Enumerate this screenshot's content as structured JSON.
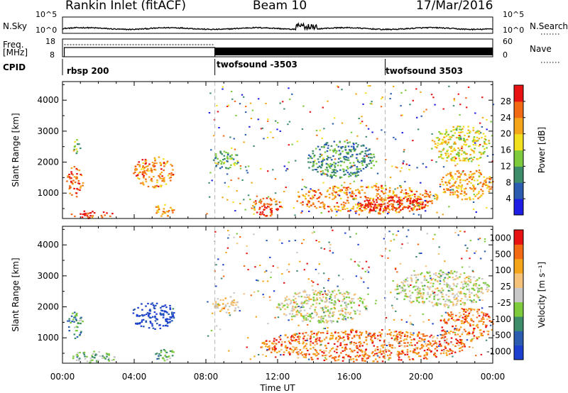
{
  "header": {
    "station": "Rankin Inlet (fitACF)",
    "beam": "Beam 10",
    "date": "17/Mar/2016"
  },
  "side_labels": {
    "nsky": "N.Sky",
    "nsearch": "N.Search",
    "freq": "Freq.",
    "freq_unit": "[MHz]",
    "nave": "Nave",
    "cpid": "CPID"
  },
  "noise_panel": {
    "left_ticks": [
      "10^5",
      "10^0"
    ],
    "right_ticks": [
      "10^5",
      "10^0"
    ]
  },
  "freq_panel": {
    "left_ticks": [
      "18",
      "8"
    ],
    "right_ticks": [
      "60",
      "0"
    ]
  },
  "cpid_segments": [
    {
      "label": "rbsp 200",
      "start": "00:00"
    },
    {
      "label": "twofsound -3503",
      "start": "08:30"
    },
    {
      "label": "twofsound 3503",
      "start": "18:00"
    }
  ],
  "chart_data": [
    {
      "type": "heatmap",
      "name": "power",
      "xlabel": "",
      "ylabel": "Slant Range [km]",
      "x_ticks": [
        "00:00",
        "04:00",
        "08:00",
        "12:00",
        "16:00",
        "20:00",
        "00:00"
      ],
      "y_ticks": [
        "1000",
        "2000",
        "3000",
        "4000"
      ],
      "ylim": [
        180,
        4600
      ],
      "colorbar_label": "Power [dB]",
      "colorbar_ticks": [
        "4",
        "8",
        "12",
        "16",
        "20",
        "24",
        "28"
      ],
      "colorbar_colors": [
        "#1d1de6",
        "#2a5db0",
        "#3d8c6a",
        "#7ecb3c",
        "#f2e01e",
        "#f5a51a",
        "#f26a14",
        "#e81212"
      ],
      "blobs": [
        {
          "x": [
            0.2,
            1.1
          ],
          "y": [
            900,
            1900
          ],
          "level": 0.8
        },
        {
          "x": [
            0.5,
            1.0
          ],
          "y": [
            2300,
            2800
          ],
          "level": 0.5
        },
        {
          "x": [
            0.4,
            2.8
          ],
          "y": [
            200,
            450
          ],
          "level": 0.9
        },
        {
          "x": [
            3.9,
            6.2
          ],
          "y": [
            1200,
            2200
          ],
          "level": 0.75
        },
        {
          "x": [
            5.0,
            6.2
          ],
          "y": [
            250,
            650
          ],
          "level": 0.7
        },
        {
          "x": [
            10.5,
            12.3
          ],
          "y": [
            250,
            900
          ],
          "level": 0.85
        },
        {
          "x": [
            13.0,
            21.0
          ],
          "y": [
            350,
            1300
          ],
          "level": 0.75
        },
        {
          "x": [
            16.5,
            20.5
          ],
          "y": [
            400,
            900
          ],
          "level": 0.95
        },
        {
          "x": [
            21.0,
            24.0
          ],
          "y": [
            800,
            1800
          ],
          "level": 0.7
        },
        {
          "x": [
            20.5,
            23.8
          ],
          "y": [
            2000,
            3200
          ],
          "level": 0.55
        },
        {
          "x": [
            8.3,
            9.8
          ],
          "y": [
            1800,
            2400
          ],
          "level": 0.4
        },
        {
          "x": [
            13.5,
            17.5
          ],
          "y": [
            1500,
            2700
          ],
          "level": 0.3
        }
      ]
    },
    {
      "type": "heatmap",
      "name": "velocity",
      "xlabel": "Time UT",
      "ylabel": "Slant Range [km]",
      "x_ticks": [
        "00:00",
        "04:00",
        "08:00",
        "12:00",
        "16:00",
        "20:00",
        "00:00"
      ],
      "y_ticks": [
        "1000",
        "2000",
        "3000",
        "4000"
      ],
      "ylim": [
        180,
        4600
      ],
      "colorbar_label": "Velocity [m s⁻¹]",
      "colorbar_ticks": [
        "1000",
        "500",
        "100",
        "25",
        "-25",
        "-100",
        "-500",
        "-1000"
      ],
      "colorbar_colors": [
        "#1d3fcf",
        "#2a5db0",
        "#3d8c6a",
        "#7ecb3c",
        "#c8c8c8",
        "#f5c27a",
        "#f5a51a",
        "#f26a14",
        "#e81212"
      ],
      "blobs": [
        {
          "x": [
            0.2,
            1.1
          ],
          "y": [
            1000,
            1900
          ],
          "level": 0.3
        },
        {
          "x": [
            3.8,
            6.3
          ],
          "y": [
            1300,
            2200
          ],
          "level": 0.05
        },
        {
          "x": [
            0.4,
            3.0
          ],
          "y": [
            200,
            600
          ],
          "level": 0.35
        },
        {
          "x": [
            5.0,
            6.2
          ],
          "y": [
            250,
            700
          ],
          "level": 0.35
        },
        {
          "x": [
            11.0,
            22.5
          ],
          "y": [
            250,
            1300
          ],
          "level": 0.8
        },
        {
          "x": [
            21.0,
            24.0
          ],
          "y": [
            900,
            2000
          ],
          "level": 0.8
        },
        {
          "x": [
            18.5,
            23.8
          ],
          "y": [
            2000,
            3200
          ],
          "level": 0.5
        },
        {
          "x": [
            8.3,
            9.8
          ],
          "y": [
            1800,
            2400
          ],
          "level": 0.65
        },
        {
          "x": [
            12.0,
            17.0
          ],
          "y": [
            1500,
            2600
          ],
          "level": 0.5
        }
      ]
    }
  ]
}
